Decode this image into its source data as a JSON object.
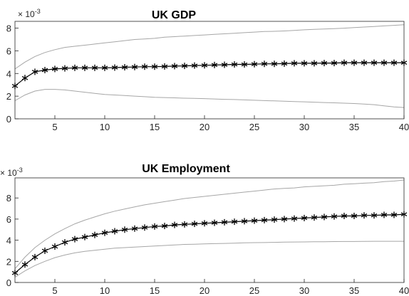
{
  "chart_data": [
    {
      "type": "line",
      "title": "UK GDP",
      "exponent_base": "× 10",
      "exponent_power": "-3",
      "xlim": [
        1,
        40
      ],
      "ylim": [
        0,
        8.6
      ],
      "xticks": [
        5,
        10,
        15,
        20,
        25,
        30,
        35,
        40
      ],
      "yticks": [
        0,
        2,
        4,
        6,
        8
      ],
      "grid": false,
      "x": [
        1,
        2,
        3,
        4,
        5,
        6,
        7,
        8,
        9,
        10,
        11,
        12,
        13,
        14,
        15,
        16,
        17,
        18,
        19,
        20,
        21,
        22,
        23,
        24,
        25,
        26,
        27,
        28,
        29,
        30,
        31,
        32,
        33,
        34,
        35,
        36,
        37,
        38,
        39,
        40
      ],
      "series": [
        {
          "role": "upper",
          "color": "#a6a6a6",
          "values": [
            4.4,
            5.0,
            5.5,
            5.85,
            6.1,
            6.3,
            6.4,
            6.5,
            6.6,
            6.7,
            6.8,
            6.9,
            7.0,
            7.05,
            7.1,
            7.2,
            7.25,
            7.3,
            7.35,
            7.4,
            7.45,
            7.5,
            7.55,
            7.6,
            7.65,
            7.7,
            7.72,
            7.75,
            7.8,
            7.85,
            7.9,
            7.93,
            7.96,
            8.0,
            8.05,
            8.1,
            8.15,
            8.2,
            8.25,
            8.3
          ]
        },
        {
          "role": "median",
          "color": "#000000",
          "marker": "asterisk",
          "values": [
            2.9,
            3.6,
            4.15,
            4.3,
            4.4,
            4.45,
            4.5,
            4.5,
            4.5,
            4.5,
            4.52,
            4.55,
            4.57,
            4.6,
            4.6,
            4.62,
            4.65,
            4.67,
            4.7,
            4.72,
            4.75,
            4.77,
            4.8,
            4.8,
            4.82,
            4.85,
            4.85,
            4.87,
            4.9,
            4.9,
            4.9,
            4.92,
            4.92,
            4.95,
            4.95,
            4.95,
            4.95,
            4.95,
            4.95,
            4.95
          ]
        },
        {
          "role": "lower",
          "color": "#a6a6a6",
          "values": [
            1.6,
            2.1,
            2.45,
            2.6,
            2.6,
            2.55,
            2.45,
            2.35,
            2.25,
            2.15,
            2.1,
            2.05,
            2.0,
            1.95,
            1.9,
            1.88,
            1.85,
            1.82,
            1.8,
            1.78,
            1.75,
            1.72,
            1.7,
            1.67,
            1.64,
            1.61,
            1.58,
            1.55,
            1.52,
            1.5,
            1.47,
            1.44,
            1.41,
            1.38,
            1.35,
            1.3,
            1.25,
            1.15,
            1.05,
            1.0
          ]
        }
      ]
    },
    {
      "type": "line",
      "title": "UK Employment",
      "exponent_base": "× 10",
      "exponent_power": "-3",
      "xlim": [
        1,
        40
      ],
      "ylim": [
        0,
        9.9
      ],
      "xticks": [
        5,
        10,
        15,
        20,
        25,
        30,
        35,
        40
      ],
      "yticks": [
        0,
        2,
        4,
        6,
        8
      ],
      "grid": false,
      "x": [
        1,
        2,
        3,
        4,
        5,
        6,
        7,
        8,
        9,
        10,
        11,
        12,
        13,
        14,
        15,
        16,
        17,
        18,
        19,
        20,
        21,
        22,
        23,
        24,
        25,
        26,
        27,
        28,
        29,
        30,
        31,
        32,
        33,
        34,
        35,
        36,
        37,
        38,
        39,
        40
      ],
      "series": [
        {
          "role": "upper",
          "color": "#a6a6a6",
          "values": [
            1.3,
            2.4,
            3.3,
            4.0,
            4.6,
            5.1,
            5.55,
            5.9,
            6.2,
            6.5,
            6.75,
            6.95,
            7.15,
            7.35,
            7.5,
            7.65,
            7.8,
            7.95,
            8.05,
            8.15,
            8.25,
            8.35,
            8.45,
            8.55,
            8.65,
            8.75,
            8.85,
            8.9,
            8.95,
            9.05,
            9.1,
            9.15,
            9.2,
            9.3,
            9.35,
            9.4,
            9.45,
            9.55,
            9.6,
            9.7
          ]
        },
        {
          "role": "median",
          "color": "#000000",
          "marker": "asterisk",
          "values": [
            0.9,
            1.7,
            2.4,
            3.0,
            3.4,
            3.8,
            4.1,
            4.3,
            4.5,
            4.7,
            4.85,
            5.0,
            5.1,
            5.2,
            5.3,
            5.35,
            5.45,
            5.5,
            5.55,
            5.6,
            5.65,
            5.7,
            5.75,
            5.8,
            5.85,
            5.9,
            5.95,
            6.0,
            6.05,
            6.1,
            6.15,
            6.2,
            6.25,
            6.3,
            6.3,
            6.35,
            6.35,
            6.4,
            6.4,
            6.45
          ]
        },
        {
          "role": "lower",
          "color": "#a6a6a6",
          "values": [
            0.5,
            1.1,
            1.6,
            2.0,
            2.35,
            2.6,
            2.8,
            2.95,
            3.05,
            3.15,
            3.25,
            3.3,
            3.35,
            3.4,
            3.45,
            3.5,
            3.55,
            3.6,
            3.62,
            3.65,
            3.68,
            3.7,
            3.72,
            3.75,
            3.77,
            3.78,
            3.8,
            3.82,
            3.83,
            3.84,
            3.85,
            3.86,
            3.87,
            3.88,
            3.88,
            3.89,
            3.9,
            3.9,
            3.9,
            3.9
          ]
        }
      ]
    }
  ]
}
